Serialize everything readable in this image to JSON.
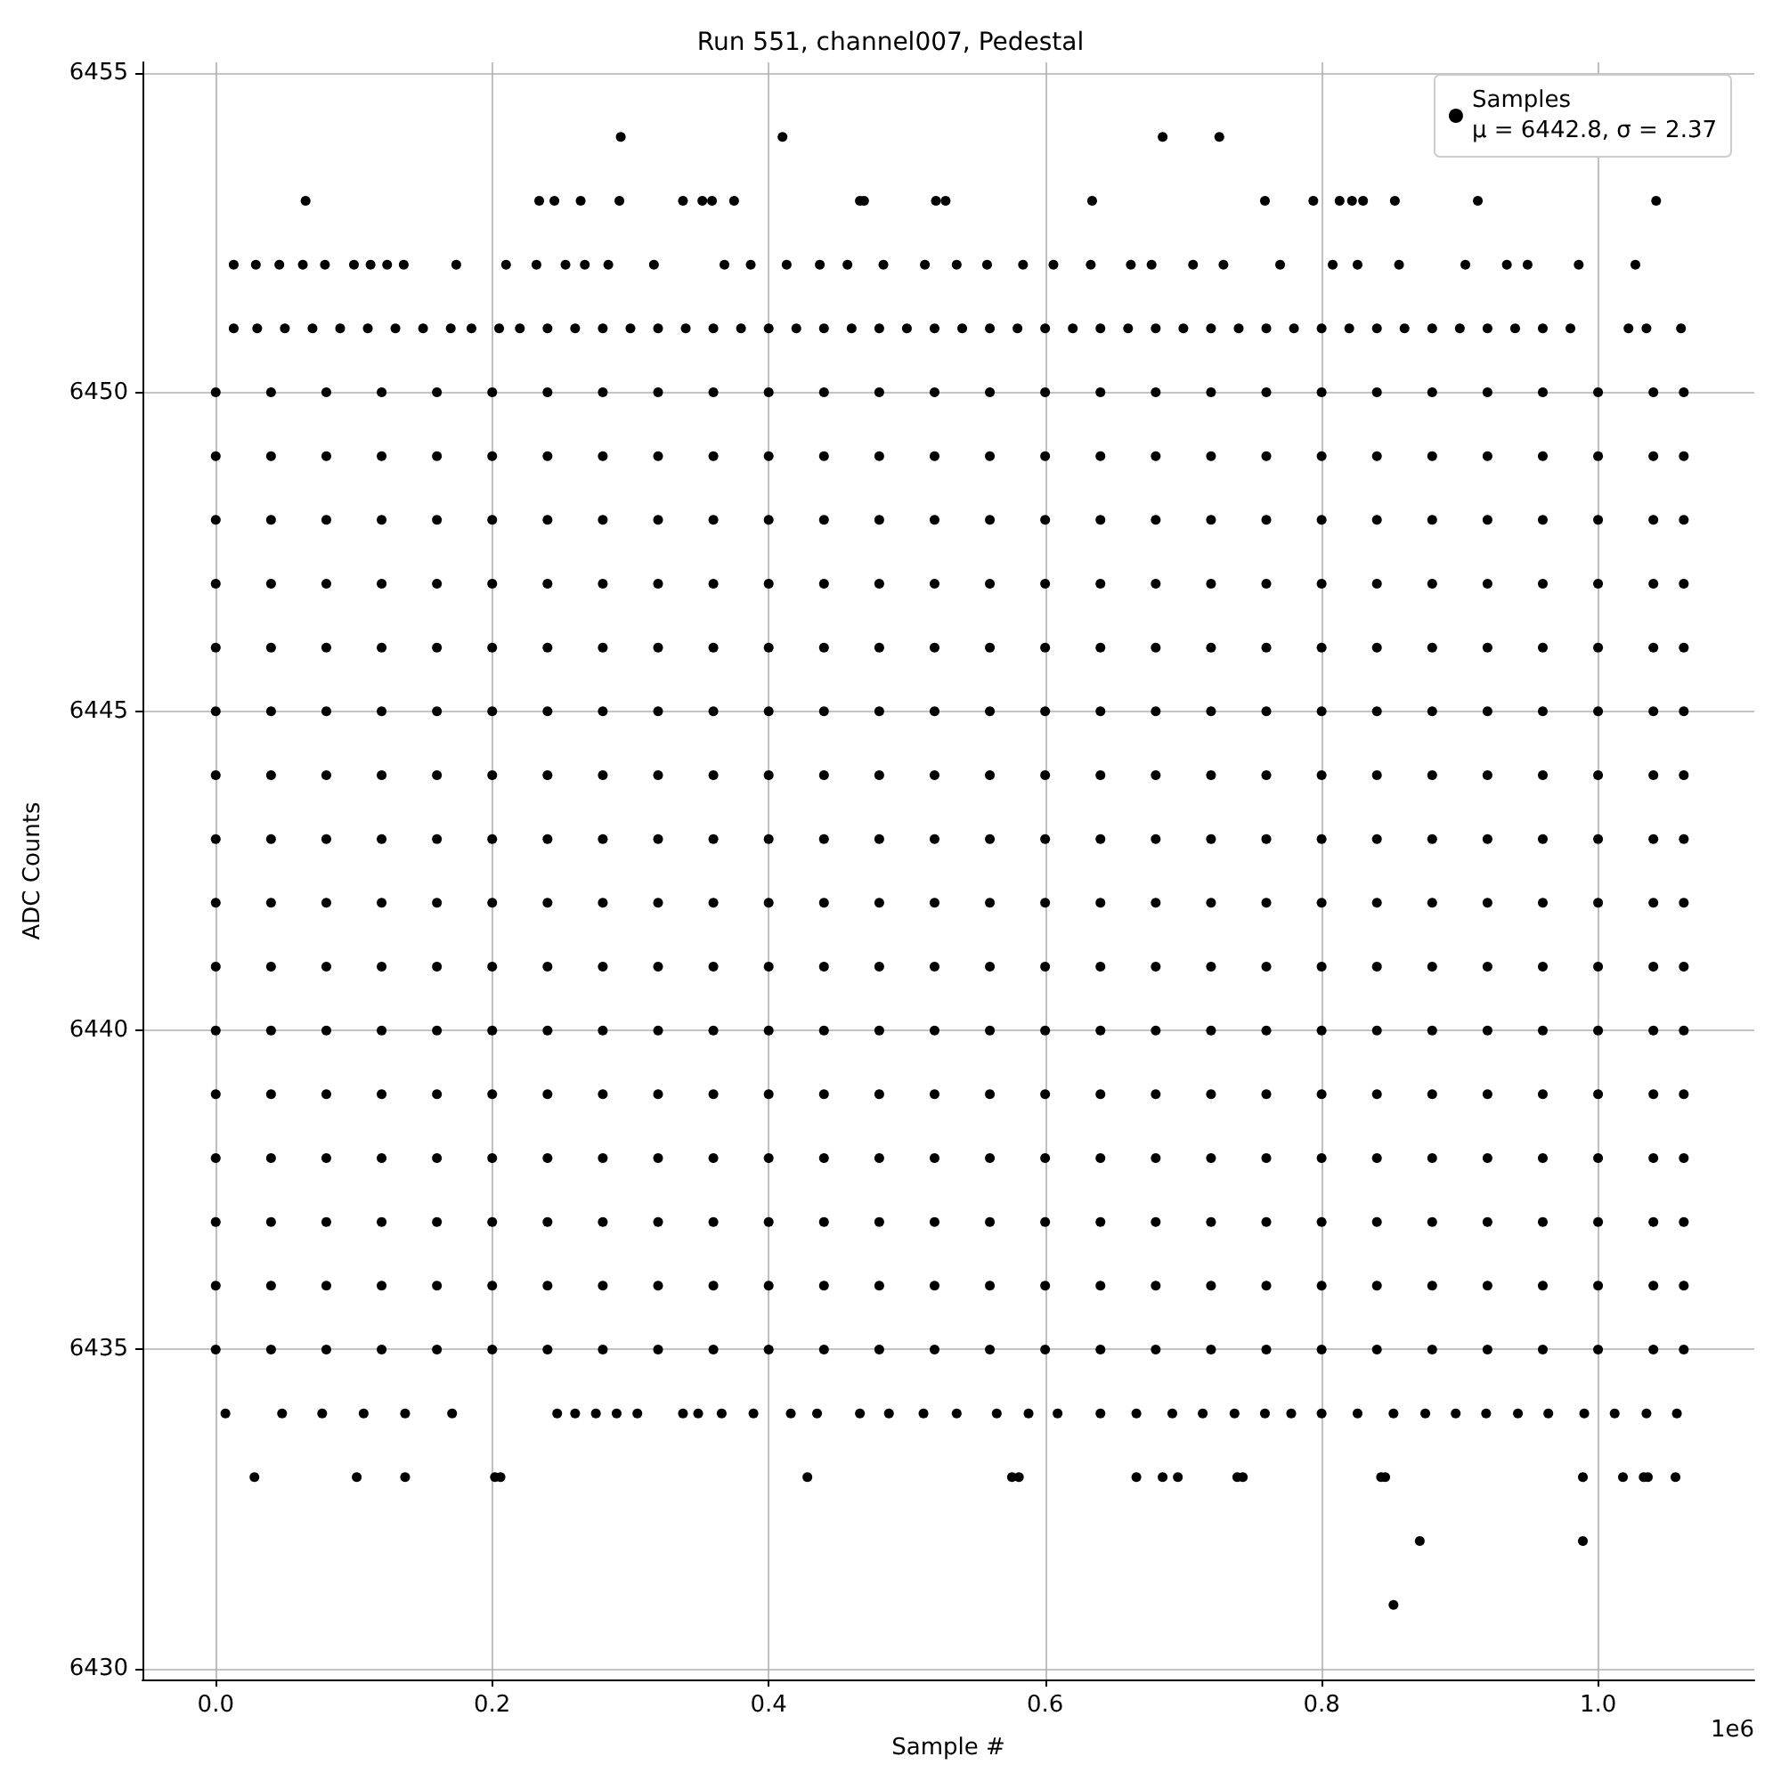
{
  "chart_data": {
    "type": "scatter",
    "title": "Run 551, channel007, Pedestal",
    "xlabel": "Sample #",
    "ylabel": "ADC Counts",
    "annotations": [
      "1e6"
    ],
    "xlim": [
      -0.053,
      1.113
    ],
    "xticks": [
      {
        "value": 0,
        "label": "0.0"
      },
      0.2,
      0.4,
      0.6,
      0.8,
      {
        "value": 1,
        "label": "1.0"
      }
    ],
    "ylim": [
      6429.83,
      6455.17
    ],
    "yticks": [
      6430,
      6435,
      6440,
      6445,
      6450,
      6455
    ],
    "grid": true,
    "legend": "top right",
    "marker": "circle",
    "series": [
      {
        "name": "Samples\nμ = 6442.8, σ = 2.37",
        "color": "#000000",
        "x": [
          0,
          0.04,
          0.08,
          0.12,
          0.16,
          0.2,
          0.24,
          0.28,
          0.32,
          0.36,
          0.4,
          0.44,
          0.48,
          0.52,
          0.56,
          0.6,
          0.64,
          0.68,
          0.72,
          0.76,
          0.8,
          0.84,
          0.88,
          0.92,
          0.96,
          1.0,
          1.04,
          1.062
        ],
        "values": [
          6442,
          6442,
          6442,
          6442,
          6442,
          6442,
          6442,
          6442,
          6442,
          6442,
          6442,
          6442,
          6442,
          6442,
          6442,
          6442,
          6442,
          6442,
          6442,
          6442,
          6442,
          6442,
          6442,
          6442,
          6442,
          6442,
          6442,
          6442
        ]
      },
      {
        "color": "#000000",
        "x": [
          0,
          0.04,
          0.08,
          0.12,
          0.16,
          0.2,
          0.24,
          0.28,
          0.32,
          0.36,
          0.4,
          0.44,
          0.48,
          0.52,
          0.56,
          0.6,
          0.64,
          0.68,
          0.72,
          0.76,
          0.8,
          0.84,
          0.88,
          0.92,
          0.96,
          1.0,
          1.04,
          1.062
        ],
        "values": [
          6435,
          6435,
          6435,
          6435,
          6435,
          6435,
          6435,
          6435,
          6435,
          6435,
          6435,
          6435,
          6435,
          6435,
          6435,
          6435,
          6435,
          6435,
          6435,
          6435,
          6435,
          6435,
          6435,
          6435,
          6435,
          6435,
          6435,
          6435
        ]
      },
      {
        "color": "#000000",
        "x": [
          0,
          0.04,
          0.08,
          0.12,
          0.16,
          0.2,
          0.24,
          0.28,
          0.32,
          0.36,
          0.4,
          0.44,
          0.48,
          0.52,
          0.56,
          0.6,
          0.64,
          0.68,
          0.72,
          0.76,
          0.8,
          0.84,
          0.88,
          0.92,
          0.96,
          1.0,
          1.04,
          1.062
        ],
        "values": [
          6436,
          6436,
          6436,
          6436,
          6436,
          6436,
          6436,
          6436,
          6436,
          6436,
          6436,
          6436,
          6436,
          6436,
          6436,
          6436,
          6436,
          6436,
          6436,
          6436,
          6436,
          6436,
          6436,
          6436,
          6436,
          6436,
          6436,
          6436
        ]
      },
      {
        "color": "#000000",
        "x": [
          0,
          0.04,
          0.08,
          0.12,
          0.16,
          0.2,
          0.24,
          0.28,
          0.32,
          0.36,
          0.4,
          0.44,
          0.48,
          0.52,
          0.56,
          0.6,
          0.64,
          0.68,
          0.72,
          0.76,
          0.8,
          0.84,
          0.88,
          0.92,
          0.96,
          1.0,
          1.04,
          1.062
        ],
        "values": [
          6437,
          6437,
          6437,
          6437,
          6437,
          6437,
          6437,
          6437,
          6437,
          6437,
          6437,
          6437,
          6437,
          6437,
          6437,
          6437,
          6437,
          6437,
          6437,
          6437,
          6437,
          6437,
          6437,
          6437,
          6437,
          6437,
          6437,
          6437
        ]
      },
      {
        "color": "#000000",
        "x": [
          0,
          0.04,
          0.08,
          0.12,
          0.16,
          0.2,
          0.24,
          0.28,
          0.32,
          0.36,
          0.4,
          0.44,
          0.48,
          0.52,
          0.56,
          0.6,
          0.64,
          0.68,
          0.72,
          0.76,
          0.8,
          0.84,
          0.88,
          0.92,
          0.96,
          1.0,
          1.04,
          1.062
        ],
        "values": [
          6438,
          6438,
          6438,
          6438,
          6438,
          6438,
          6438,
          6438,
          6438,
          6438,
          6438,
          6438,
          6438,
          6438,
          6438,
          6438,
          6438,
          6438,
          6438,
          6438,
          6438,
          6438,
          6438,
          6438,
          6438,
          6438,
          6438,
          6438
        ]
      },
      {
        "color": "#000000",
        "x": [
          0,
          0.04,
          0.08,
          0.12,
          0.16,
          0.2,
          0.24,
          0.28,
          0.32,
          0.36,
          0.4,
          0.44,
          0.48,
          0.52,
          0.56,
          0.6,
          0.64,
          0.68,
          0.72,
          0.76,
          0.8,
          0.84,
          0.88,
          0.92,
          0.96,
          1.0,
          1.04,
          1.062
        ],
        "values": [
          6439,
          6439,
          6439,
          6439,
          6439,
          6439,
          6439,
          6439,
          6439,
          6439,
          6439,
          6439,
          6439,
          6439,
          6439,
          6439,
          6439,
          6439,
          6439,
          6439,
          6439,
          6439,
          6439,
          6439,
          6439,
          6439,
          6439,
          6439
        ]
      },
      {
        "color": "#000000",
        "x": [
          0,
          0.04,
          0.08,
          0.12,
          0.16,
          0.2,
          0.24,
          0.28,
          0.32,
          0.36,
          0.4,
          0.44,
          0.48,
          0.52,
          0.56,
          0.6,
          0.64,
          0.68,
          0.72,
          0.76,
          0.8,
          0.84,
          0.88,
          0.92,
          0.96,
          1.0,
          1.04,
          1.062
        ],
        "values": [
          6440,
          6440,
          6440,
          6440,
          6440,
          6440,
          6440,
          6440,
          6440,
          6440,
          6440,
          6440,
          6440,
          6440,
          6440,
          6440,
          6440,
          6440,
          6440,
          6440,
          6440,
          6440,
          6440,
          6440,
          6440,
          6440,
          6440,
          6440
        ]
      },
      {
        "color": "#000000",
        "x": [
          0,
          0.04,
          0.08,
          0.12,
          0.16,
          0.2,
          0.24,
          0.28,
          0.32,
          0.36,
          0.4,
          0.44,
          0.48,
          0.52,
          0.56,
          0.6,
          0.64,
          0.68,
          0.72,
          0.76,
          0.8,
          0.84,
          0.88,
          0.92,
          0.96,
          1.0,
          1.04,
          1.062
        ],
        "values": [
          6441,
          6441,
          6441,
          6441,
          6441,
          6441,
          6441,
          6441,
          6441,
          6441,
          6441,
          6441,
          6441,
          6441,
          6441,
          6441,
          6441,
          6441,
          6441,
          6441,
          6441,
          6441,
          6441,
          6441,
          6441,
          6441,
          6441,
          6441
        ]
      },
      {
        "color": "#000000",
        "x": [
          0,
          0.04,
          0.08,
          0.12,
          0.16,
          0.2,
          0.24,
          0.28,
          0.32,
          0.36,
          0.4,
          0.44,
          0.48,
          0.52,
          0.56,
          0.6,
          0.64,
          0.68,
          0.72,
          0.76,
          0.8,
          0.84,
          0.88,
          0.92,
          0.96,
          1.0,
          1.04,
          1.062
        ],
        "values": [
          6443,
          6443,
          6443,
          6443,
          6443,
          6443,
          6443,
          6443,
          6443,
          6443,
          6443,
          6443,
          6443,
          6443,
          6443,
          6443,
          6443,
          6443,
          6443,
          6443,
          6443,
          6443,
          6443,
          6443,
          6443,
          6443,
          6443,
          6443
        ]
      },
      {
        "color": "#000000",
        "x": [
          0,
          0.04,
          0.08,
          0.12,
          0.16,
          0.2,
          0.24,
          0.28,
          0.32,
          0.36,
          0.4,
          0.44,
          0.48,
          0.52,
          0.56,
          0.6,
          0.64,
          0.68,
          0.72,
          0.76,
          0.8,
          0.84,
          0.88,
          0.92,
          0.96,
          1.0,
          1.04,
          1.062
        ],
        "values": [
          6444,
          6444,
          6444,
          6444,
          6444,
          6444,
          6444,
          6444,
          6444,
          6444,
          6444,
          6444,
          6444,
          6444,
          6444,
          6444,
          6444,
          6444,
          6444,
          6444,
          6444,
          6444,
          6444,
          6444,
          6444,
          6444,
          6444,
          6444
        ]
      },
      {
        "color": "#000000",
        "x": [
          0,
          0.04,
          0.08,
          0.12,
          0.16,
          0.2,
          0.24,
          0.28,
          0.32,
          0.36,
          0.4,
          0.44,
          0.48,
          0.52,
          0.56,
          0.6,
          0.64,
          0.68,
          0.72,
          0.76,
          0.8,
          0.84,
          0.88,
          0.92,
          0.96,
          1.0,
          1.04,
          1.062
        ],
        "values": [
          6445,
          6445,
          6445,
          6445,
          6445,
          6445,
          6445,
          6445,
          6445,
          6445,
          6445,
          6445,
          6445,
          6445,
          6445,
          6445,
          6445,
          6445,
          6445,
          6445,
          6445,
          6445,
          6445,
          6445,
          6445,
          6445,
          6445,
          6445
        ]
      },
      {
        "color": "#000000",
        "x": [
          0,
          0.04,
          0.08,
          0.12,
          0.16,
          0.2,
          0.24,
          0.28,
          0.32,
          0.36,
          0.4,
          0.44,
          0.48,
          0.52,
          0.56,
          0.6,
          0.64,
          0.68,
          0.72,
          0.76,
          0.8,
          0.84,
          0.88,
          0.92,
          0.96,
          1.0,
          1.04,
          1.062
        ],
        "values": [
          6446,
          6446,
          6446,
          6446,
          6446,
          6446,
          6446,
          6446,
          6446,
          6446,
          6446,
          6446,
          6446,
          6446,
          6446,
          6446,
          6446,
          6446,
          6446,
          6446,
          6446,
          6446,
          6446,
          6446,
          6446,
          6446,
          6446,
          6446
        ]
      },
      {
        "color": "#000000",
        "x": [
          0,
          0.04,
          0.08,
          0.12,
          0.16,
          0.2,
          0.24,
          0.28,
          0.32,
          0.36,
          0.4,
          0.44,
          0.48,
          0.52,
          0.56,
          0.6,
          0.64,
          0.68,
          0.72,
          0.76,
          0.8,
          0.84,
          0.88,
          0.92,
          0.96,
          1.0,
          1.04,
          1.062
        ],
        "values": [
          6447,
          6447,
          6447,
          6447,
          6447,
          6447,
          6447,
          6447,
          6447,
          6447,
          6447,
          6447,
          6447,
          6447,
          6447,
          6447,
          6447,
          6447,
          6447,
          6447,
          6447,
          6447,
          6447,
          6447,
          6447,
          6447,
          6447,
          6447
        ]
      },
      {
        "color": "#000000",
        "x": [
          0,
          0.04,
          0.08,
          0.12,
          0.16,
          0.2,
          0.24,
          0.28,
          0.32,
          0.36,
          0.4,
          0.44,
          0.48,
          0.52,
          0.56,
          0.6,
          0.64,
          0.68,
          0.72,
          0.76,
          0.8,
          0.84,
          0.88,
          0.92,
          0.96,
          1.0,
          1.04,
          1.062
        ],
        "values": [
          6448,
          6448,
          6448,
          6448,
          6448,
          6448,
          6448,
          6448,
          6448,
          6448,
          6448,
          6448,
          6448,
          6448,
          6448,
          6448,
          6448,
          6448,
          6448,
          6448,
          6448,
          6448,
          6448,
          6448,
          6448,
          6448,
          6448,
          6448
        ]
      },
      {
        "color": "#000000",
        "x": [
          0,
          0.04,
          0.08,
          0.12,
          0.16,
          0.2,
          0.24,
          0.28,
          0.32,
          0.36,
          0.4,
          0.44,
          0.48,
          0.52,
          0.56,
          0.6,
          0.64,
          0.68,
          0.72,
          0.76,
          0.8,
          0.84,
          0.88,
          0.92,
          0.96,
          1.0,
          1.04,
          1.062
        ],
        "values": [
          6449,
          6449,
          6449,
          6449,
          6449,
          6449,
          6449,
          6449,
          6449,
          6449,
          6449,
          6449,
          6449,
          6449,
          6449,
          6449,
          6449,
          6449,
          6449,
          6449,
          6449,
          6449,
          6449,
          6449,
          6449,
          6449,
          6449,
          6449
        ]
      },
      {
        "color": "#000000",
        "x": [
          0,
          0.04,
          0.08,
          0.12,
          0.16,
          0.2,
          0.24,
          0.28,
          0.32,
          0.36,
          0.4,
          0.44,
          0.48,
          0.52,
          0.56,
          0.6,
          0.64,
          0.68,
          0.72,
          0.76,
          0.8,
          0.84,
          0.88,
          0.92,
          0.96,
          1.0,
          1.04,
          1.062
        ],
        "values": [
          6450,
          6450,
          6450,
          6450,
          6450,
          6450,
          6450,
          6450,
          6450,
          6450,
          6450,
          6450,
          6450,
          6450,
          6450,
          6450,
          6450,
          6450,
          6450,
          6450,
          6450,
          6450,
          6450,
          6450,
          6450,
          6450,
          6450,
          6450
        ]
      },
      {
        "color": "#000000",
        "x": [
          0.013,
          0.03,
          0.05,
          0.07,
          0.09,
          0.11,
          0.13,
          0.15,
          0.17,
          0.185,
          0.205,
          0.22,
          0.24,
          0.26,
          0.28,
          0.3,
          0.32,
          0.34,
          0.36,
          0.38,
          0.4,
          0.42,
          0.44,
          0.46,
          0.48,
          0.5,
          0.52,
          0.54,
          0.56,
          0.58,
          0.6,
          0.62,
          0.64,
          0.66,
          0.68,
          0.7,
          0.72,
          0.74,
          0.76,
          0.78,
          0.8,
          0.82,
          0.84,
          0.86,
          0.88,
          0.9,
          0.92,
          0.94,
          0.96,
          0.98,
          1.022,
          1.035,
          1.06
        ],
        "values": [
          6451,
          6451,
          6451,
          6451,
          6451,
          6451,
          6451,
          6451,
          6451,
          6451,
          6451,
          6451,
          6451,
          6451,
          6451,
          6451,
          6451,
          6451,
          6451,
          6451,
          6451,
          6451,
          6451,
          6451,
          6451,
          6451,
          6451,
          6451,
          6451,
          6451,
          6451,
          6451,
          6451,
          6451,
          6451,
          6451,
          6451,
          6451,
          6451,
          6451,
          6451,
          6451,
          6451,
          6451,
          6451,
          6451,
          6451,
          6451,
          6451,
          6451,
          6451,
          6451,
          6451
        ]
      },
      {
        "color": "#000000",
        "x": [
          0.013,
          0.029,
          0.046,
          0.063,
          0.079,
          0.1,
          0.112,
          0.124,
          0.136,
          0.174,
          0.21,
          0.232,
          0.253,
          0.267,
          0.284,
          0.317,
          0.368,
          0.387,
          0.413,
          0.437,
          0.457,
          0.483,
          0.513,
          0.536,
          0.558,
          0.584,
          0.606,
          0.633,
          0.662,
          0.677,
          0.707,
          0.729,
          0.77,
          0.808,
          0.826,
          0.856,
          0.904,
          0.934,
          0.949,
          0.986,
          1.027
        ],
        "values": [
          6452,
          6452,
          6452,
          6452,
          6452,
          6452,
          6452,
          6452,
          6452,
          6452,
          6452,
          6452,
          6452,
          6452,
          6452,
          6452,
          6452,
          6452,
          6452,
          6452,
          6452,
          6452,
          6452,
          6452,
          6452,
          6452,
          6452,
          6452,
          6452,
          6452,
          6452,
          6452,
          6452,
          6452,
          6452,
          6452,
          6452,
          6452,
          6452,
          6452,
          6452
        ]
      },
      {
        "color": "#000000",
        "x": [
          0.065,
          0.234,
          0.245,
          0.264,
          0.292,
          0.338,
          0.352,
          0.359,
          0.375,
          0.466,
          0.469,
          0.521,
          0.528,
          0.634,
          0.759,
          0.794,
          0.813,
          0.822,
          0.83,
          0.853,
          0.913,
          1.042
        ],
        "values": [
          6453,
          6453,
          6453,
          6453,
          6453,
          6453,
          6453,
          6453,
          6453,
          6453,
          6453,
          6453,
          6453,
          6453,
          6453,
          6453,
          6453,
          6453,
          6453,
          6453,
          6453,
          6453
        ]
      },
      {
        "color": "#000000",
        "x": [
          0.293,
          0.41,
          0.685,
          0.726
        ],
        "values": [
          6454,
          6454,
          6454,
          6454
        ]
      },
      {
        "color": "#000000",
        "x": [
          0.007,
          0.048,
          0.077,
          0.107,
          0.137,
          0.171,
          0.247,
          0.26,
          0.275,
          0.29,
          0.305,
          0.338,
          0.349,
          0.366,
          0.389,
          0.416,
          0.435,
          0.466,
          0.487,
          0.512,
          0.536,
          0.565,
          0.588,
          0.609,
          0.64,
          0.666,
          0.692,
          0.714,
          0.737,
          0.759,
          0.778,
          0.8,
          0.826,
          0.852,
          0.875,
          0.897,
          0.919,
          0.942,
          0.964,
          0.99,
          1.012,
          1.035,
          1.057
        ],
        "values": [
          6434,
          6434,
          6434,
          6434,
          6434,
          6434,
          6434,
          6434,
          6434,
          6434,
          6434,
          6434,
          6434,
          6434,
          6434,
          6434,
          6434,
          6434,
          6434,
          6434,
          6434,
          6434,
          6434,
          6434,
          6434,
          6434,
          6434,
          6434,
          6434,
          6434,
          6434,
          6434,
          6434,
          6434,
          6434,
          6434,
          6434,
          6434,
          6434,
          6434,
          6434,
          6434,
          6434
        ]
      },
      {
        "color": "#000000",
        "x": [
          0.028,
          0.102,
          0.137,
          0.202,
          0.206,
          0.428,
          0.576,
          0.581,
          0.666,
          0.685,
          0.696,
          0.739,
          0.743,
          0.843,
          0.846,
          0.989,
          1.018,
          1.033,
          1.036,
          1.056
        ],
        "values": [
          6433,
          6433,
          6433,
          6433,
          6433,
          6433,
          6433,
          6433,
          6433,
          6433,
          6433,
          6433,
          6433,
          6433,
          6433,
          6433,
          6433,
          6433,
          6433,
          6433
        ]
      },
      {
        "color": "#000000",
        "x": [
          0.871,
          0.989
        ],
        "values": [
          6432,
          6432
        ]
      },
      {
        "color": "#000000",
        "x": [
          0.852
        ],
        "values": [
          6431
        ]
      }
    ]
  }
}
